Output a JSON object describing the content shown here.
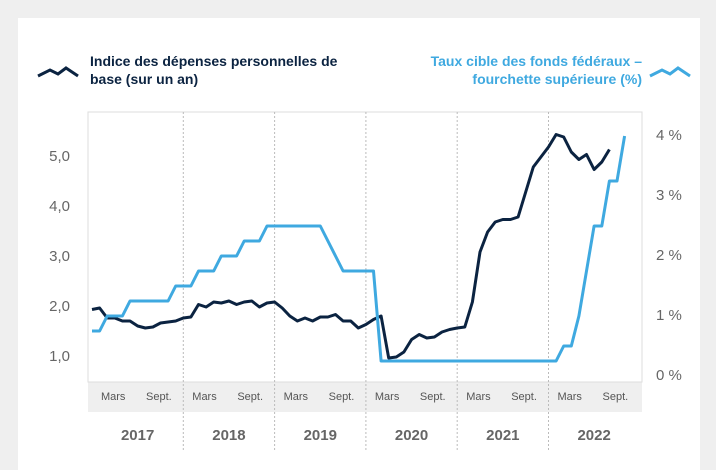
{
  "chart_data": {
    "type": "line",
    "x": [
      "2017-01",
      "2017-02",
      "2017-03",
      "2017-04",
      "2017-05",
      "2017-06",
      "2017-07",
      "2017-08",
      "2017-09",
      "2017-10",
      "2017-11",
      "2017-12",
      "2018-01",
      "2018-02",
      "2018-03",
      "2018-04",
      "2018-05",
      "2018-06",
      "2018-07",
      "2018-08",
      "2018-09",
      "2018-10",
      "2018-11",
      "2018-12",
      "2019-01",
      "2019-02",
      "2019-03",
      "2019-04",
      "2019-05",
      "2019-06",
      "2019-07",
      "2019-08",
      "2019-09",
      "2019-10",
      "2019-11",
      "2019-12",
      "2020-01",
      "2020-02",
      "2020-03",
      "2020-04",
      "2020-05",
      "2020-06",
      "2020-07",
      "2020-08",
      "2020-09",
      "2020-10",
      "2020-11",
      "2020-12",
      "2021-01",
      "2021-02",
      "2021-03",
      "2021-04",
      "2021-05",
      "2021-06",
      "2021-07",
      "2021-08",
      "2021-09",
      "2021-10",
      "2021-11",
      "2021-12",
      "2022-01",
      "2022-02",
      "2022-03",
      "2022-04",
      "2022-05",
      "2022-06",
      "2022-07",
      "2022-08",
      "2022-09",
      "2022-10",
      "2022-11"
    ],
    "series": [
      {
        "name": "Indice des dépenses personnelles de base (sur un an)",
        "color": "#0b2341",
        "axis": "y",
        "values": [
          1.95,
          1.98,
          1.78,
          1.78,
          1.72,
          1.72,
          1.62,
          1.58,
          1.6,
          1.68,
          1.7,
          1.72,
          1.78,
          1.8,
          2.05,
          2.0,
          2.1,
          2.08,
          2.12,
          2.05,
          2.1,
          2.12,
          2.0,
          2.08,
          2.1,
          1.98,
          1.82,
          1.72,
          1.78,
          1.72,
          1.8,
          1.8,
          1.85,
          1.72,
          1.72,
          1.58,
          1.65,
          1.75,
          1.82,
          0.98,
          1.0,
          1.1,
          1.35,
          1.45,
          1.38,
          1.4,
          1.5,
          1.55,
          1.58,
          1.6,
          2.1,
          3.1,
          3.5,
          3.7,
          3.75,
          3.75,
          3.8,
          4.3,
          4.8,
          5.0,
          5.2,
          5.45,
          5.4,
          5.1,
          4.95,
          5.05,
          4.75,
          4.9,
          5.15,
          null,
          null
        ]
      },
      {
        "name": "Taux cible des fonds fédéraux – fourchette supérieure (%)",
        "color": "#3fa9e0",
        "axis": "y2",
        "values": [
          0.75,
          0.75,
          1.0,
          1.0,
          1.0,
          1.25,
          1.25,
          1.25,
          1.25,
          1.25,
          1.25,
          1.5,
          1.5,
          1.5,
          1.75,
          1.75,
          1.75,
          2.0,
          2.0,
          2.0,
          2.25,
          2.25,
          2.25,
          2.5,
          2.5,
          2.5,
          2.5,
          2.5,
          2.5,
          2.5,
          2.5,
          2.25,
          2.0,
          1.75,
          1.75,
          1.75,
          1.75,
          1.75,
          0.25,
          0.25,
          0.25,
          0.25,
          0.25,
          0.25,
          0.25,
          0.25,
          0.25,
          0.25,
          0.25,
          0.25,
          0.25,
          0.25,
          0.25,
          0.25,
          0.25,
          0.25,
          0.25,
          0.25,
          0.25,
          0.25,
          0.25,
          0.25,
          0.5,
          0.5,
          1.0,
          1.75,
          2.5,
          2.5,
          3.25,
          3.25,
          4.0
        ]
      }
    ],
    "ylim": [
      0.5,
      5.9
    ],
    "yticks": [
      {
        "value": 1,
        "label": "1,0"
      },
      {
        "value": 2,
        "label": "2,0"
      },
      {
        "value": 3,
        "label": "3,0"
      },
      {
        "value": 4,
        "label": "4,0"
      },
      {
        "value": 5,
        "label": "5,0"
      }
    ],
    "y2lim": [
      -0.1,
      4.4
    ],
    "y2ticks": [
      {
        "value": 0,
        "label": "0 %"
      },
      {
        "value": 1,
        "label": "1 %"
      },
      {
        "value": 2,
        "label": "2 %"
      },
      {
        "value": 3,
        "label": "3 %"
      },
      {
        "value": 4,
        "label": "4 %"
      }
    ],
    "xticks": [
      {
        "value": "2017-03",
        "label": "Mars"
      },
      {
        "value": "2017-09",
        "label": "Sept."
      },
      {
        "value": "2018-03",
        "label": "Mars"
      },
      {
        "value": "2018-09",
        "label": "Sept."
      },
      {
        "value": "2019-03",
        "label": "Mars"
      },
      {
        "value": "2019-09",
        "label": "Sept."
      },
      {
        "value": "2020-03",
        "label": "Mars"
      },
      {
        "value": "2020-09",
        "label": "Sept."
      },
      {
        "value": "2021-03",
        "label": "Mars"
      },
      {
        "value": "2021-09",
        "label": "Sept."
      },
      {
        "value": "2022-03",
        "label": "Mars"
      },
      {
        "value": "2022-09",
        "label": "Sept."
      }
    ],
    "year_labels": [
      "2017",
      "2018",
      "2019",
      "2020",
      "2021",
      "2022"
    ],
    "grid": true
  }
}
